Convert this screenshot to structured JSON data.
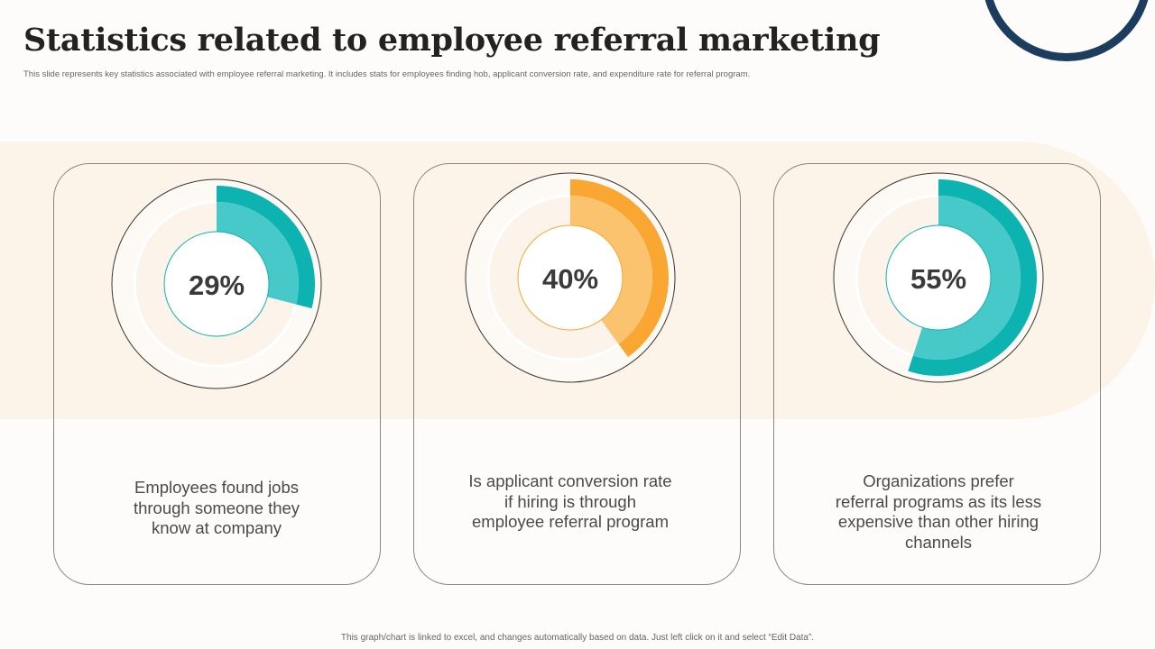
{
  "title": "Statistics related to employee referral marketing",
  "subtitle": "This slide represents key statistics associated with employee referral marketing. It includes stats for employees finding hob, applicant conversion rate, and expenditure rate for referral program.",
  "footer": "This graph/chart is linked to excel, and changes automatically based on data. Just left click on it and select “Edit Data”.",
  "colors": {
    "teal": "#0db3b0",
    "teal_light": "#48c9c9",
    "orange": "#faa633",
    "orange_light": "#fcc36e",
    "navy": "#1d3d5e"
  },
  "chart_data": [
    {
      "type": "pie",
      "value": 29,
      "label": "29%",
      "description": "Employees found jobs through someone they know at company",
      "color": "teal"
    },
    {
      "type": "pie",
      "value": 40,
      "label": "40%",
      "description": "Is applicant conversion rate if hiring is through employee referral program",
      "color": "orange"
    },
    {
      "type": "pie",
      "value": 55,
      "label": "55%",
      "description": "Organizations prefer referral programs as its less expensive than other hiring channels",
      "color": "teal"
    }
  ]
}
